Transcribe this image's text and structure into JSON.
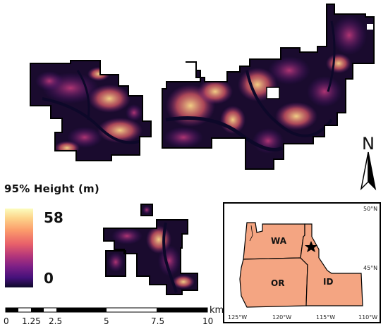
{
  "legend": {
    "title": "95% Height (m)",
    "max_label": "58",
    "min_label": "0",
    "colormap": [
      "#fcfdbf",
      "#fdd48a",
      "#fb9a6b",
      "#e8606a",
      "#b4367a",
      "#7b1f86",
      "#44117a",
      "#0d0829"
    ]
  },
  "north_arrow": {
    "label": "N",
    "icon": "north-arrow-icon"
  },
  "scale_bar": {
    "unit": "km",
    "ticks": [
      "0",
      "1.25",
      "2.5",
      "5",
      "7.5",
      "10"
    ]
  },
  "inset_map": {
    "states": [
      "WA",
      "OR",
      "ID"
    ],
    "lat_labels": [
      "50°N",
      "45°N"
    ],
    "lon_labels": [
      "125°W",
      "120°W",
      "115°W",
      "110°W"
    ],
    "marker": "star-icon",
    "land_color": "#f4a582",
    "border_color": "#000000"
  }
}
